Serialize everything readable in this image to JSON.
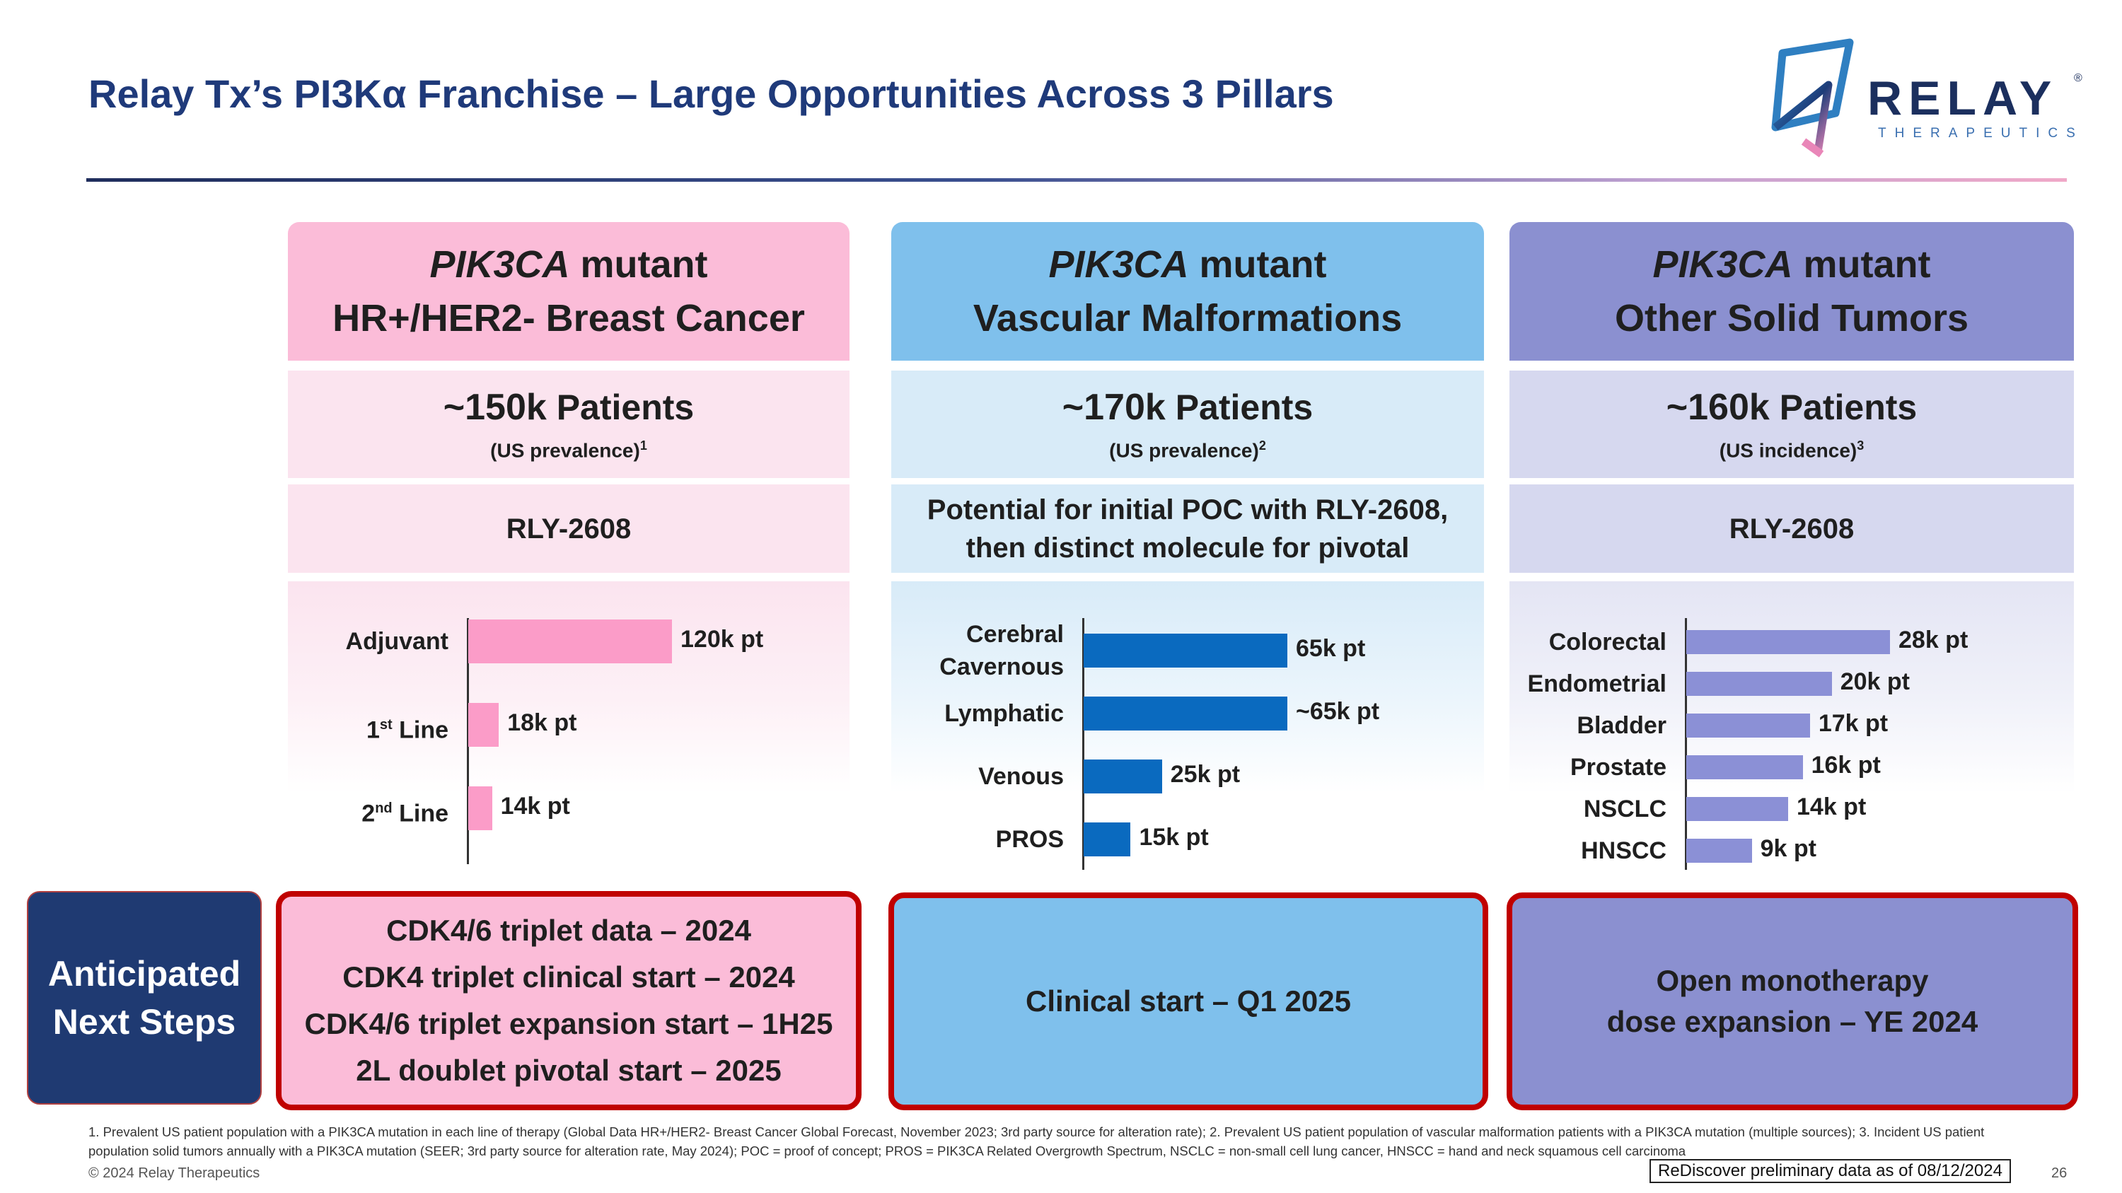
{
  "title": "Relay Tx’s PI3Kα Franchise – Large Opportunities Across 3 Pillars",
  "logo": {
    "word": "RELAY",
    "reg": "®",
    "sub": "THERAPEUTICS"
  },
  "colors": {
    "pink": "#fbbcd8",
    "blue": "#7fc0ec",
    "purple": "#8b90d0",
    "navy": "#1f3a72",
    "red": "#c00000"
  },
  "columns": [
    {
      "head_gene": "PIK3CA",
      "head_suffix": " mutant",
      "head_line2": "HR+/HER2- Breast Cancer",
      "patients_num": "~150k",
      "patients_word": " Patients",
      "patients_sub": "(US prevalence)",
      "patients_ref": "1",
      "drug": "RLY-2608",
      "chart": [
        {
          "label": "Adjuvant",
          "value": 120,
          "text": "120k pt"
        },
        {
          "label": "1",
          "label_sup": "st",
          "label_suffix": " Line",
          "value": 18,
          "text": "18k pt"
        },
        {
          "label": "2",
          "label_sup": "nd",
          "label_suffix": " Line",
          "value": 14,
          "text": "14k pt"
        }
      ],
      "next_steps": [
        "CDK4/6 triplet data – 2024",
        "CDK4 triplet clinical start – 2024",
        "CDK4/6 triplet expansion start – 1H25",
        "2L doublet pivotal start – 2025"
      ]
    },
    {
      "head_gene": "PIK3CA",
      "head_suffix": " mutant",
      "head_line2": "Vascular Malformations",
      "patients_num": "~170k",
      "patients_word": " Patients",
      "patients_sub": "(US prevalence)",
      "patients_ref": "2",
      "drug_line1": "Potential for initial POC with RLY-2608,",
      "drug_line2": "then distinct molecule for pivotal",
      "chart": [
        {
          "label_line1": "Cerebral",
          "label_line2": "Cavernous",
          "value": 65,
          "text": "65k pt"
        },
        {
          "label": "Lymphatic",
          "value": 65,
          "text": "~65k pt"
        },
        {
          "label": "Venous",
          "value": 25,
          "text": "25k pt"
        },
        {
          "label": "PROS",
          "value": 15,
          "text": "15k pt"
        }
      ],
      "next_steps": [
        "Clinical start – Q1 2025"
      ]
    },
    {
      "head_gene": "PIK3CA",
      "head_suffix": " mutant",
      "head_line2": "Other Solid Tumors",
      "patients_num": "~160k",
      "patients_word": " Patients",
      "patients_sub": "(US incidence)",
      "patients_ref": "3",
      "drug": "RLY-2608",
      "chart": [
        {
          "label": "Colorectal",
          "value": 28,
          "text": "28k pt"
        },
        {
          "label": "Endometrial",
          "value": 20,
          "text": "20k pt"
        },
        {
          "label": "Bladder",
          "value": 17,
          "text": "17k pt"
        },
        {
          "label": "Prostate",
          "value": 16,
          "text": "16k pt"
        },
        {
          "label": "NSCLC",
          "value": 14,
          "text": "14k pt"
        },
        {
          "label": "HNSCC",
          "value": 9,
          "text": "9k pt"
        }
      ],
      "next_steps": [
        "Open monotherapy",
        "dose expansion – YE 2024"
      ]
    }
  ],
  "next_steps_label": {
    "line1": "Anticipated",
    "line2": "Next Steps"
  },
  "footnote": "1. Prevalent US patient population with a PIK3CA mutation in each line of therapy (Global Data HR+/HER2- Breast Cancer Global Forecast, November 2023; 3rd party source for alteration rate); 2. Prevalent US patient population of vascular malformation patients with a PIK3CA mutation (multiple sources); 3. Incident US patient population solid tumors annually with a PIK3CA mutation (SEER; 3rd party source for alteration rate, May 2024);  POC = proof of concept;  PROS = PIK3CA Related Overgrowth Spectrum, NSCLC = non-small cell lung cancer, HNSCC = hand and neck squamous cell carcinoma",
  "copyright": "© 2024 Relay Therapeutics",
  "rediscover": "ReDiscover preliminary data as of 08/12/2024",
  "page_number": "26"
}
